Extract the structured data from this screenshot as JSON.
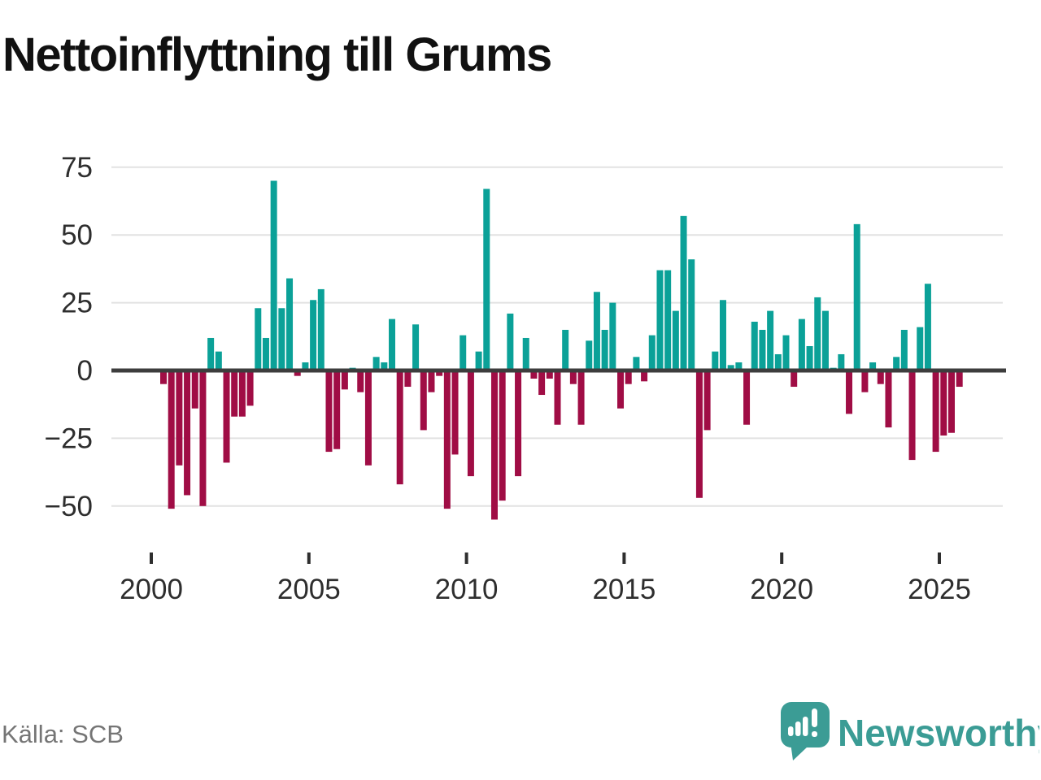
{
  "chart_data": {
    "type": "bar",
    "title": "Nettoinflyttning till Grums",
    "frequency": "quarterly",
    "start_period": "2000-Q1",
    "end_period": "2025-Q2",
    "values": [
      -5,
      -51,
      -35,
      -46,
      -14,
      -50,
      12,
      7,
      -34,
      -17,
      -17,
      -13,
      23,
      12,
      70,
      23,
      34,
      -2,
      3,
      26,
      30,
      -30,
      -29,
      -7,
      1,
      -8,
      -35,
      5,
      3,
      19,
      -42,
      -6,
      17,
      -22,
      -8,
      -2,
      -51,
      -31,
      13,
      -39,
      7,
      67,
      -55,
      -48,
      21,
      -39,
      12,
      -3,
      -9,
      -3,
      -20,
      15,
      -5,
      -20,
      11,
      29,
      15,
      25,
      -14,
      -5,
      5,
      -4,
      13,
      37,
      37,
      22,
      57,
      41,
      -47,
      -22,
      7,
      26,
      2,
      3,
      -20,
      18,
      15,
      22,
      6,
      13,
      -6,
      19,
      9,
      27,
      22,
      1,
      6,
      -16,
      54,
      -8,
      3,
      -5,
      -21,
      5,
      15,
      -33,
      16,
      32,
      -30,
      -24,
      -23,
      -6
    ],
    "yticks": [
      {
        "value": 75,
        "label": "75"
      },
      {
        "value": 50,
        "label": "50"
      },
      {
        "value": 25,
        "label": "25"
      },
      {
        "value": 0,
        "label": "0"
      },
      {
        "value": -25,
        "label": "−25"
      },
      {
        "value": -50,
        "label": "−50"
      }
    ],
    "xticks": [
      {
        "value": 2000,
        "label": "2000"
      },
      {
        "value": 2005,
        "label": "2005"
      },
      {
        "value": 2010,
        "label": "2010"
      },
      {
        "value": 2015,
        "label": "2015"
      },
      {
        "value": 2020,
        "label": "2020"
      },
      {
        "value": 2025,
        "label": "2025"
      }
    ],
    "ylim": [
      -61,
      80
    ],
    "grid": "horizontal",
    "positive_color": "#0ba198",
    "negative_color": "#a00d45",
    "axis_color": "#3d3d3d",
    "gridline_color": "#e2e2e2",
    "tick_label_color": "#2e2e2e"
  },
  "footer": {
    "source": "Källa: SCB",
    "brand": "Newsworthy",
    "brand_color": "#3b9c95"
  }
}
